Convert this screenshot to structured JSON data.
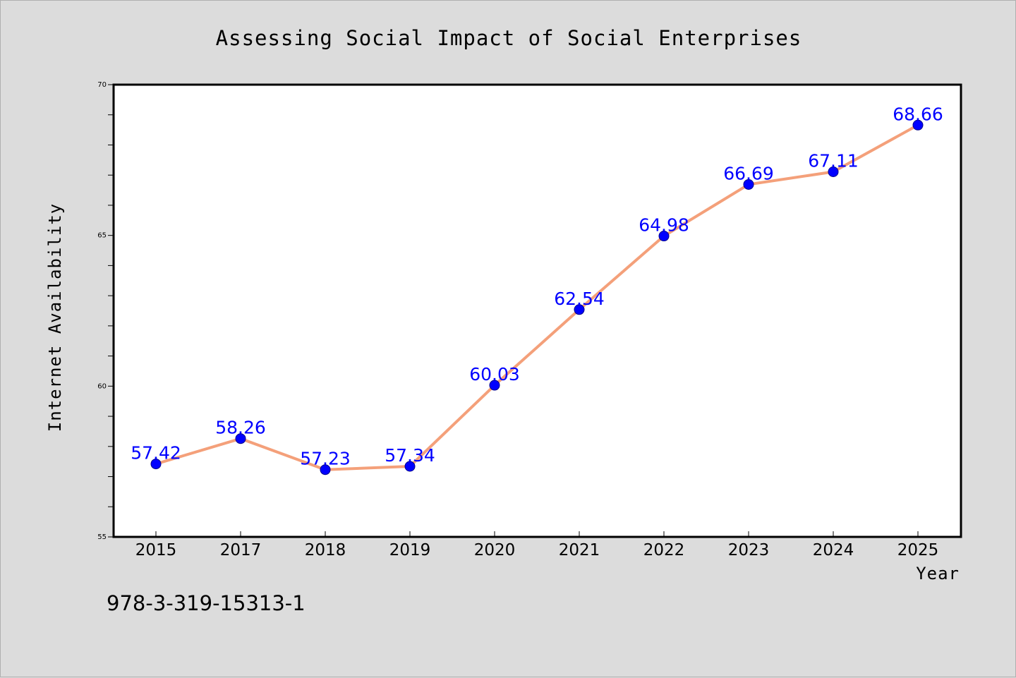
{
  "chart_data": {
    "type": "line",
    "title": "Assessing Social Impact of Social Enterprises",
    "xlabel": "Year",
    "ylabel": "Internet Availability",
    "categories": [
      "2015",
      "2017",
      "2018",
      "2019",
      "2020",
      "2021",
      "2022",
      "2023",
      "2024",
      "2025"
    ],
    "series": [
      {
        "values": [
          57.42,
          58.26,
          57.23,
          57.34,
          60.03,
          62.54,
          64.98,
          66.69,
          67.11,
          68.66
        ],
        "data_labels": [
          "57.42",
          "58.26",
          "57.23",
          "57.34",
          "60.03",
          "62.54",
          "64.98",
          "66.69",
          "67.11",
          "68.66"
        ],
        "line_color": "#f4a07a",
        "marker_color": "#0000ff"
      }
    ],
    "ylim": [
      55,
      70
    ],
    "yticks_major": [
      55,
      60,
      65,
      70
    ],
    "ytick_labels": [
      "55",
      "60",
      "65",
      "70"
    ],
    "ytick_minor_step": 1,
    "grid": false,
    "legend": "none"
  },
  "caption": "978-3-319-15313-1",
  "colors": {
    "background": "#dcdcdc",
    "plot_background": "#ffffff",
    "line": "#f4a07a",
    "marker": "#0000ff",
    "data_label": "#0000ff"
  }
}
